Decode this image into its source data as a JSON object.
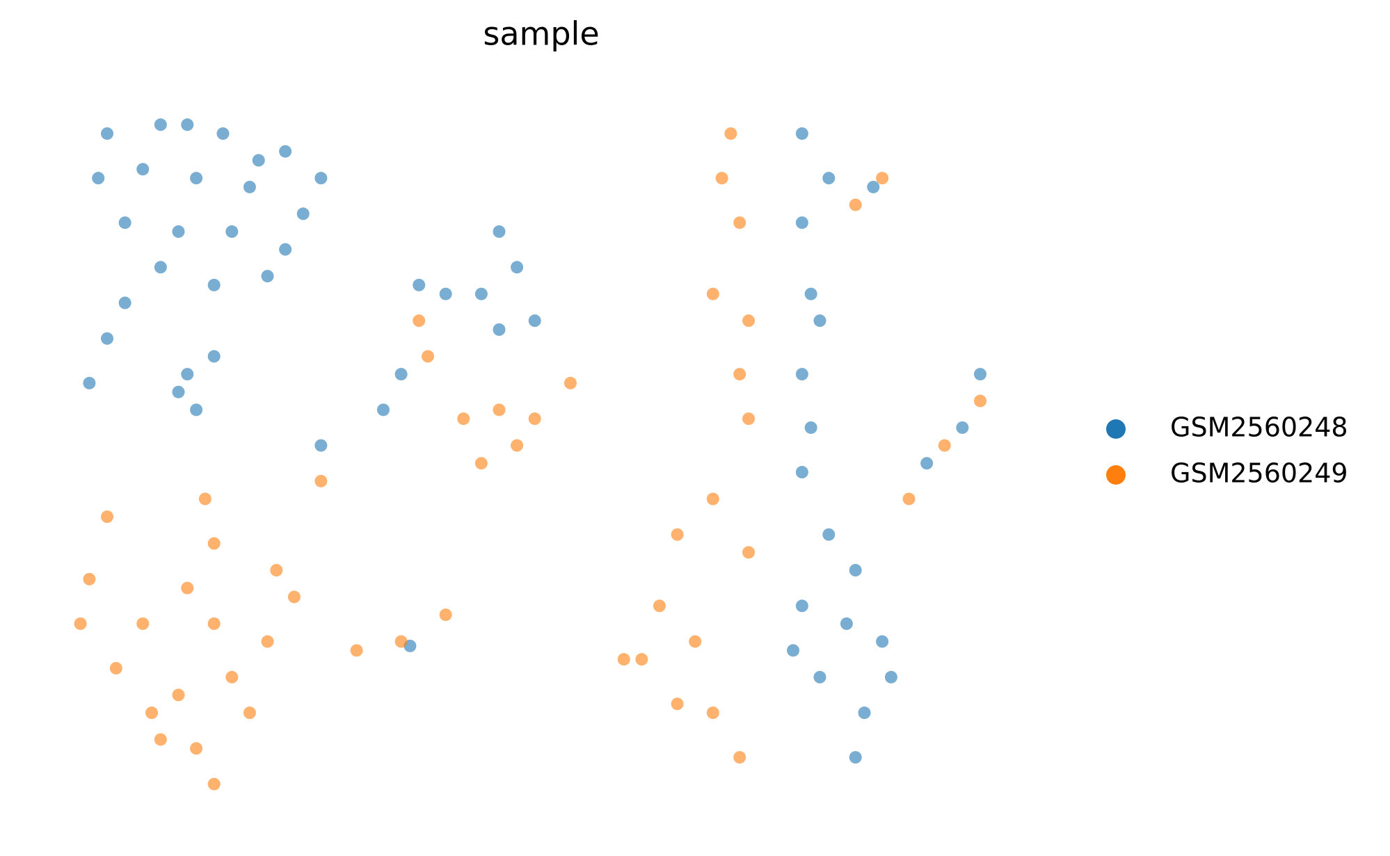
{
  "chart_data": {
    "type": "scatter",
    "title": "sample",
    "xlim": [
      0,
      1080
    ],
    "ylim": [
      0,
      810
    ],
    "series": [
      {
        "name": "GSM2560248",
        "color": "#1f77b4",
        "x": [
          50,
          110,
          180,
          250,
          290,
          40,
          90,
          150,
          210,
          270,
          70,
          130,
          190,
          250,
          110,
          170,
          230,
          140,
          220,
          30,
          50,
          70,
          140,
          150,
          130,
          170,
          490,
          510,
          470,
          430,
          530,
          400,
          490,
          360,
          380,
          290,
          830,
          860,
          910,
          830,
          840,
          850,
          830,
          840,
          830,
          860,
          890,
          830,
          880,
          920,
          850,
          900,
          890,
          930,
          820,
          1030,
          1010,
          970,
          390
        ],
        "y": [
          760,
          770,
          760,
          740,
          710,
          710,
          720,
          710,
          700,
          670,
          660,
          650,
          650,
          630,
          610,
          590,
          600,
          770,
          730,
          480,
          530,
          570,
          490,
          450,
          470,
          510,
          650,
          610,
          580,
          580,
          550,
          590,
          540,
          450,
          490,
          410,
          760,
          710,
          700,
          660,
          580,
          550,
          490,
          430,
          380,
          310,
          270,
          230,
          210,
          190,
          150,
          110,
          60,
          150,
          180,
          490,
          430,
          390,
          185
        ]
      },
      {
        "name": "GSM2560249",
        "color": "#ff7f0e",
        "x": [
          50,
          30,
          20,
          60,
          100,
          150,
          170,
          130,
          190,
          230,
          260,
          170,
          210,
          90,
          140,
          160,
          170,
          240,
          110,
          330,
          380,
          430,
          490,
          510,
          470,
          530,
          410,
          400,
          450,
          290,
          570,
          750,
          740,
          760,
          730,
          770,
          760,
          770,
          730,
          690,
          670,
          650,
          710,
          730,
          690,
          760,
          770,
          630,
          920,
          890,
          990,
          950,
          1030
        ],
        "y": [
          330,
          260,
          210,
          160,
          110,
          70,
          30,
          130,
          150,
          190,
          240,
          210,
          110,
          210,
          250,
          350,
          300,
          270,
          80,
          180,
          190,
          220,
          450,
          410,
          390,
          440,
          510,
          550,
          440,
          370,
          480,
          760,
          710,
          660,
          580,
          550,
          490,
          440,
          350,
          310,
          230,
          170,
          190,
          110,
          120,
          60,
          290,
          170,
          710,
          680,
          410,
          350,
          460
        ]
      }
    ]
  }
}
